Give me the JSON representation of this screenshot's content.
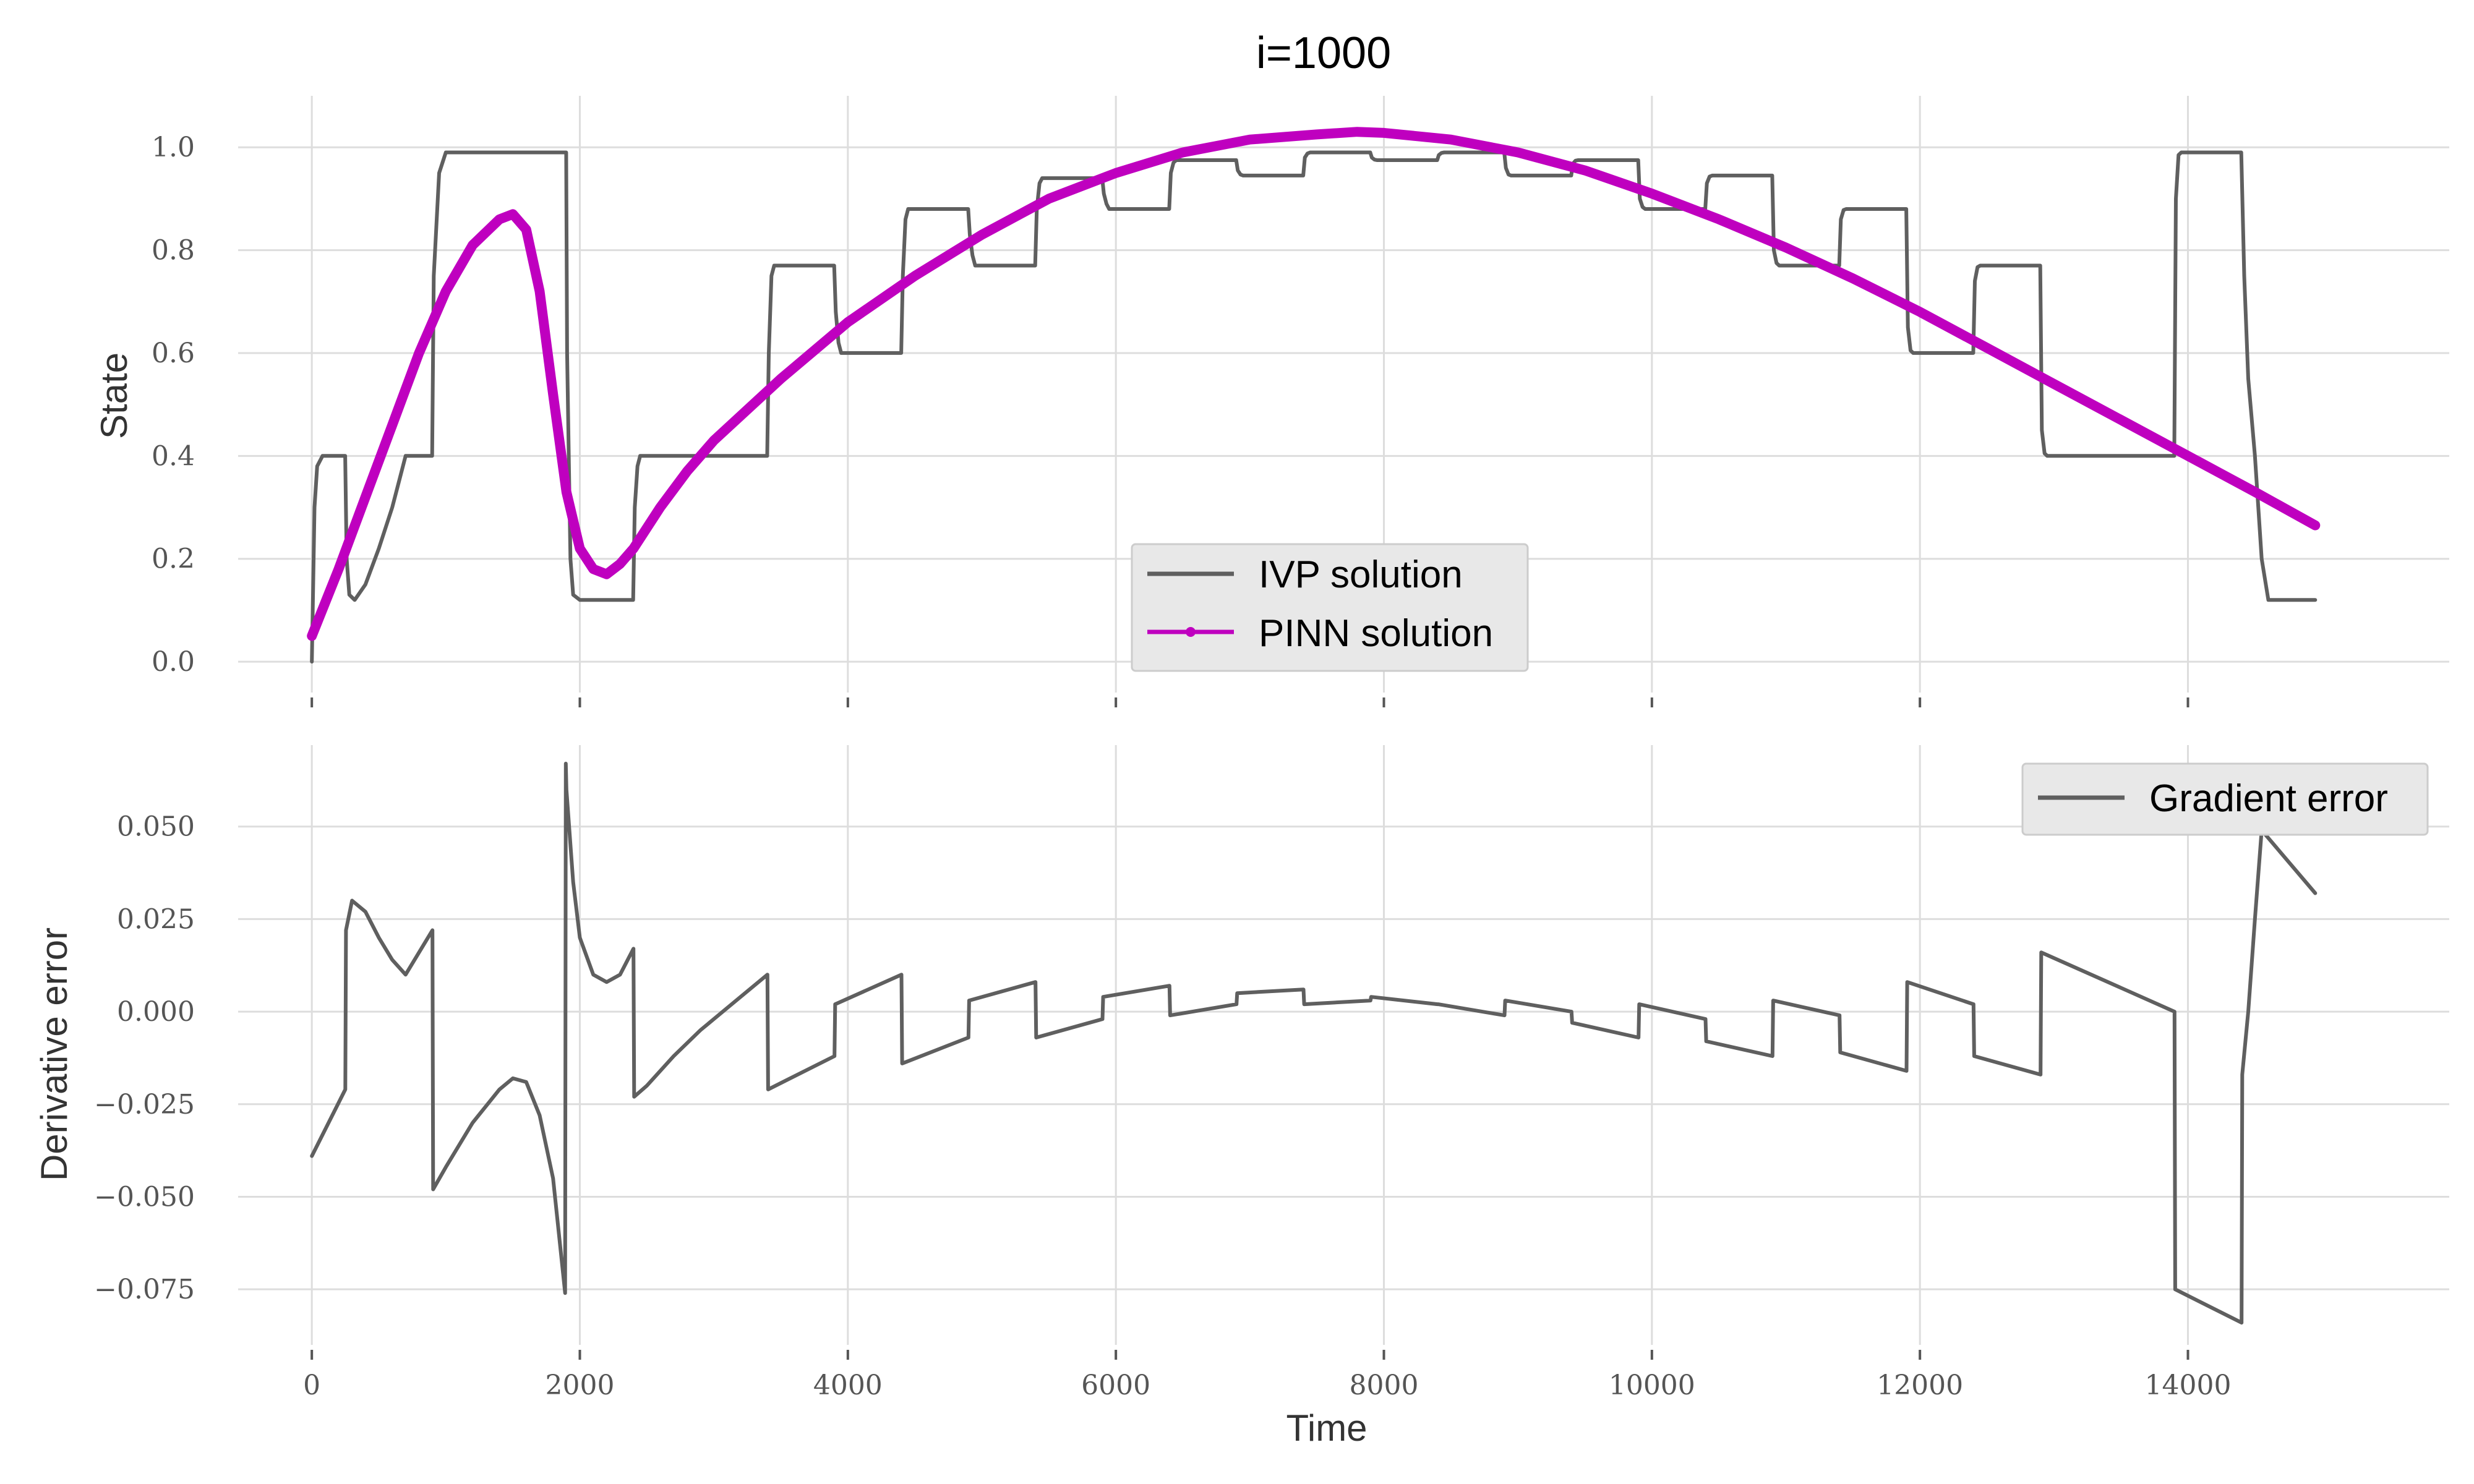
{
  "figure": {
    "title": "i=1000",
    "xlabel": "Time",
    "x_ticks": [
      0,
      2000,
      4000,
      6000,
      8000,
      10000,
      12000,
      14000
    ],
    "x_tick_labels": [
      "0",
      "2000",
      "4000",
      "6000",
      "8000",
      "10000",
      "12000",
      "14000"
    ]
  },
  "colors": {
    "ivp": "#5f5f5f",
    "pinn": "#bf00bf",
    "gradient": "#5f5f5f",
    "grid": "#dddddd",
    "legend_bg": "#e8e8e8"
  },
  "chart_data": [
    {
      "type": "line",
      "title": "i=1000",
      "xlabel": "",
      "ylabel": "State",
      "xlim": [
        -550,
        15950
      ],
      "ylim": [
        -0.06,
        1.1
      ],
      "grid": true,
      "legend_position": "bottom-center",
      "y_ticks": [
        0.0,
        0.2,
        0.4,
        0.6,
        0.8,
        1.0
      ],
      "y_tick_labels": [
        "0.0",
        "0.2",
        "0.4",
        "0.6",
        "0.8",
        "1.0"
      ],
      "series": [
        {
          "name": "IVP solution",
          "x": [
            0,
            20,
            40,
            80,
            150,
            249,
            260,
            280,
            320,
            400,
            500,
            600,
            700,
            898,
            910,
            950,
            1000,
            1898,
            1905,
            1930,
            1950,
            2000,
            2398,
            2410,
            2430,
            2450,
            2500,
            3398,
            3410,
            3430,
            3450,
            3500,
            3898,
            3910,
            3930,
            3950,
            4000,
            4398,
            4410,
            4430,
            4450,
            4500,
            4898,
            4910,
            4930,
            4950,
            5000,
            5398,
            5410,
            5430,
            5450,
            5500,
            5898,
            5910,
            5930,
            5950,
            6000,
            6398,
            6410,
            6430,
            6450,
            6500,
            6898,
            6910,
            6930,
            6950,
            7000,
            7398,
            7410,
            7430,
            7450,
            7500,
            7898,
            7910,
            7930,
            7950,
            8000,
            8398,
            8410,
            8430,
            8450,
            8500,
            8898,
            8910,
            8930,
            8950,
            9000,
            9398,
            9410,
            9430,
            9450,
            9500,
            9898,
            9910,
            9930,
            9950,
            10000,
            10398,
            10410,
            10430,
            10450,
            10500,
            10898,
            10910,
            10930,
            10950,
            11000,
            11398,
            11410,
            11430,
            11450,
            11500,
            11898,
            11910,
            11930,
            11950,
            12000,
            12398,
            12410,
            12430,
            12450,
            12500,
            12898,
            12910,
            12930,
            12950,
            13000,
            13898,
            13910,
            13930,
            13950,
            14000,
            14398,
            14420,
            14450,
            14500,
            14550,
            14600,
            14950
          ],
          "y": [
            0.0,
            0.3,
            0.38,
            0.4,
            0.4,
            0.4,
            0.2,
            0.13,
            0.12,
            0.15,
            0.22,
            0.3,
            0.4,
            0.4,
            0.75,
            0.95,
            0.99,
            0.99,
            0.6,
            0.2,
            0.13,
            0.12,
            0.12,
            0.3,
            0.38,
            0.4,
            0.4,
            0.4,
            0.6,
            0.75,
            0.77,
            0.77,
            0.77,
            0.68,
            0.62,
            0.6,
            0.6,
            0.6,
            0.75,
            0.86,
            0.88,
            0.88,
            0.88,
            0.83,
            0.79,
            0.77,
            0.77,
            0.77,
            0.88,
            0.93,
            0.94,
            0.94,
            0.94,
            0.91,
            0.89,
            0.88,
            0.88,
            0.88,
            0.95,
            0.97,
            0.975,
            0.975,
            0.975,
            0.955,
            0.947,
            0.945,
            0.945,
            0.945,
            0.98,
            0.988,
            0.99,
            0.99,
            0.99,
            0.98,
            0.976,
            0.975,
            0.975,
            0.975,
            0.985,
            0.989,
            0.99,
            0.99,
            0.99,
            0.96,
            0.947,
            0.945,
            0.945,
            0.945,
            0.968,
            0.974,
            0.975,
            0.975,
            0.975,
            0.9,
            0.884,
            0.88,
            0.88,
            0.88,
            0.93,
            0.943,
            0.945,
            0.945,
            0.945,
            0.8,
            0.775,
            0.77,
            0.77,
            0.77,
            0.86,
            0.878,
            0.88,
            0.88,
            0.88,
            0.65,
            0.605,
            0.6,
            0.6,
            0.6,
            0.74,
            0.767,
            0.77,
            0.77,
            0.77,
            0.45,
            0.405,
            0.4,
            0.4,
            0.4,
            0.9,
            0.985,
            0.99,
            0.99,
            0.99,
            0.75,
            0.55,
            0.4,
            0.2,
            0.12,
            0.12
          ]
        },
        {
          "name": "PINN solution",
          "x": [
            0,
            200,
            400,
            600,
            800,
            1000,
            1200,
            1400,
            1500,
            1600,
            1700,
            1800,
            1900,
            2000,
            2100,
            2200,
            2300,
            2400,
            2600,
            2800,
            3000,
            3500,
            4000,
            4500,
            5000,
            5500,
            6000,
            6500,
            7000,
            7500,
            7800,
            8000,
            8500,
            9000,
            9500,
            10000,
            10500,
            11000,
            11500,
            12000,
            12500,
            13000,
            13500,
            14000,
            14500,
            14950
          ],
          "y": [
            0.05,
            0.18,
            0.32,
            0.46,
            0.6,
            0.72,
            0.81,
            0.86,
            0.87,
            0.84,
            0.72,
            0.52,
            0.33,
            0.22,
            0.18,
            0.17,
            0.19,
            0.22,
            0.3,
            0.37,
            0.43,
            0.55,
            0.66,
            0.75,
            0.83,
            0.9,
            0.95,
            0.99,
            1.015,
            1.025,
            1.03,
            1.028,
            1.015,
            0.99,
            0.955,
            0.91,
            0.86,
            0.805,
            0.745,
            0.68,
            0.61,
            0.54,
            0.47,
            0.4,
            0.33,
            0.265
          ]
        }
      ]
    },
    {
      "type": "line",
      "title": "",
      "xlabel": "Time",
      "ylabel": "Derivative error",
      "xlim": [
        -550,
        15950
      ],
      "ylim": [
        -0.09,
        0.072
      ],
      "grid": true,
      "legend_position": "top-right",
      "y_ticks": [
        -0.075,
        -0.05,
        -0.025,
        0.0,
        0.025,
        0.05
      ],
      "y_tick_labels": [
        "−0.075",
        "−0.050",
        "−0.025",
        "0.000",
        "0.025",
        "0.050"
      ],
      "series": [
        {
          "name": "Gradient error",
          "x": [
            0,
            250,
            255,
            300,
            400,
            500,
            600,
            700,
            900,
            905,
            1000,
            1200,
            1400,
            1500,
            1600,
            1700,
            1800,
            1890,
            1895,
            1900,
            1950,
            2000,
            2100,
            2200,
            2300,
            2400,
            2405,
            2500,
            2700,
            2900,
            3100,
            3400,
            3405,
            3900,
            3905,
            4400,
            4405,
            4900,
            4905,
            5400,
            5405,
            5900,
            5905,
            6400,
            6405,
            6900,
            6905,
            7400,
            7405,
            7900,
            7905,
            8400,
            8405,
            8900,
            8905,
            9400,
            9405,
            9900,
            9905,
            10400,
            10405,
            10900,
            10905,
            11400,
            11405,
            11900,
            11905,
            12400,
            12405,
            12900,
            12905,
            13900,
            13905,
            14400,
            14405,
            14450,
            14500,
            14550,
            14950
          ],
          "y": [
            -0.039,
            -0.021,
            0.022,
            0.03,
            0.027,
            0.02,
            0.014,
            0.01,
            0.022,
            -0.048,
            -0.042,
            -0.03,
            -0.021,
            -0.018,
            -0.019,
            -0.028,
            -0.045,
            -0.076,
            0.067,
            0.06,
            0.035,
            0.02,
            0.01,
            0.008,
            0.01,
            0.017,
            -0.023,
            -0.02,
            -0.012,
            -0.005,
            0.001,
            0.01,
            -0.021,
            -0.012,
            0.002,
            0.01,
            -0.014,
            -0.007,
            0.003,
            0.008,
            -0.007,
            -0.002,
            0.004,
            0.007,
            -0.001,
            0.002,
            0.005,
            0.006,
            0.002,
            0.003,
            0.004,
            0.002,
            0.002,
            -0.001,
            0.003,
            0.0,
            -0.003,
            -0.007,
            0.002,
            -0.002,
            -0.008,
            -0.012,
            0.003,
            -0.001,
            -0.011,
            -0.016,
            0.008,
            0.002,
            -0.012,
            -0.017,
            0.016,
            0.0,
            -0.075,
            -0.084,
            -0.017,
            0.0,
            0.025,
            0.049,
            0.032
          ]
        }
      ]
    }
  ]
}
